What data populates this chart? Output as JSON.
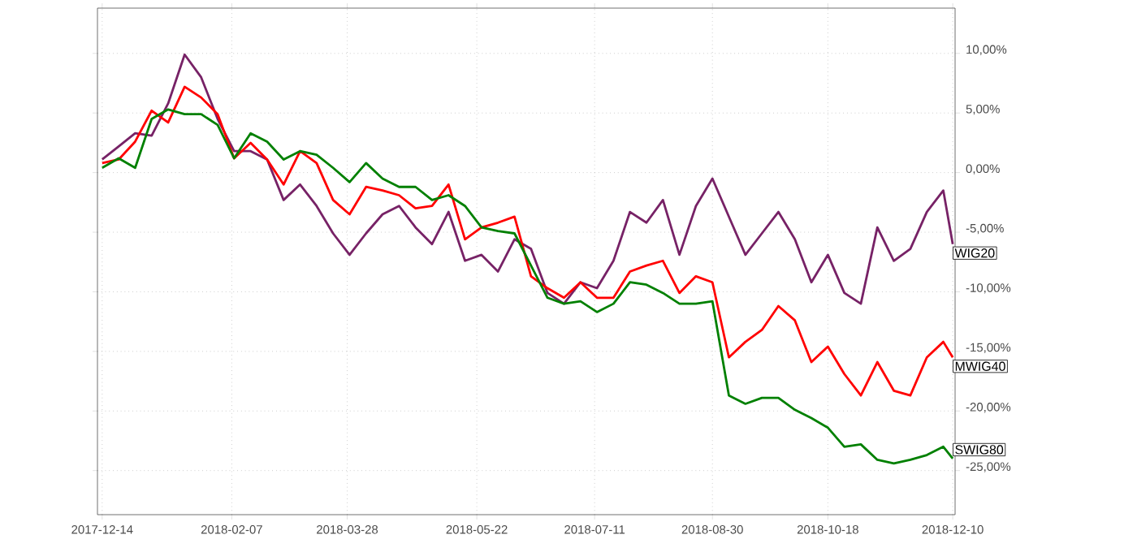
{
  "chart_data": {
    "type": "line",
    "x": [
      "2017-12-14",
      "2017-12-21",
      "2017-12-28",
      "2018-01-04",
      "2018-01-11",
      "2018-01-18",
      "2018-01-25",
      "2018-02-01",
      "2018-02-08",
      "2018-02-15",
      "2018-02-22",
      "2018-03-01",
      "2018-03-08",
      "2018-03-15",
      "2018-03-22",
      "2018-03-29",
      "2018-04-05",
      "2018-04-12",
      "2018-04-19",
      "2018-04-26",
      "2018-05-03",
      "2018-05-10",
      "2018-05-17",
      "2018-05-24",
      "2018-05-31",
      "2018-06-07",
      "2018-06-14",
      "2018-06-21",
      "2018-06-28",
      "2018-07-05",
      "2018-07-12",
      "2018-07-19",
      "2018-07-26",
      "2018-08-02",
      "2018-08-09",
      "2018-08-16",
      "2018-08-23",
      "2018-08-30",
      "2018-09-06",
      "2018-09-13",
      "2018-09-20",
      "2018-09-27",
      "2018-10-04",
      "2018-10-11",
      "2018-10-18",
      "2018-10-25",
      "2018-11-01",
      "2018-11-08",
      "2018-11-15",
      "2018-11-22",
      "2018-11-29",
      "2018-12-06",
      "2018-12-10"
    ],
    "series": [
      {
        "name": "WIG20",
        "color": "#772266",
        "values": [
          1.1,
          2.2,
          3.3,
          3.1,
          5.8,
          9.9,
          8.0,
          4.5,
          1.8,
          1.8,
          1.1,
          -2.3,
          -1.0,
          -2.8,
          -5.1,
          -6.9,
          -5.1,
          -3.5,
          -2.8,
          -4.6,
          -6.0,
          -3.3,
          -7.4,
          -6.9,
          -8.3,
          -5.6,
          -6.4,
          -10.1,
          -11.0,
          -9.2,
          -9.7,
          -7.4,
          -3.3,
          -4.2,
          -2.3,
          -6.9,
          -2.8,
          -0.5,
          -3.7,
          -6.9,
          -5.1,
          -3.3,
          -5.6,
          -9.2,
          -6.9,
          -10.1,
          -11.0,
          -4.6,
          -7.4,
          -6.4,
          -3.3,
          -1.5,
          -6.0
        ]
      },
      {
        "name": "MWIG40",
        "color": "#ff0000",
        "values": [
          0.8,
          1.1,
          2.6,
          5.2,
          4.2,
          7.2,
          6.3,
          4.9,
          1.2,
          2.5,
          1.1,
          -1.0,
          1.8,
          0.8,
          -2.3,
          -3.5,
          -1.2,
          -1.5,
          -1.9,
          -3.0,
          -2.8,
          -1.0,
          -5.6,
          -4.6,
          -4.2,
          -3.7,
          -8.7,
          -9.7,
          -10.5,
          -9.2,
          -10.5,
          -10.5,
          -8.3,
          -7.8,
          -7.4,
          -10.1,
          -8.7,
          -9.2,
          -15.5,
          -14.2,
          -13.2,
          -11.2,
          -12.4,
          -15.9,
          -14.6,
          -16.9,
          -18.7,
          -15.9,
          -18.3,
          -18.7,
          -15.5,
          -14.2,
          -15.5
        ]
      },
      {
        "name": "SWIG80",
        "color": "#008000",
        "values": [
          0.4,
          1.2,
          0.4,
          4.5,
          5.3,
          4.9,
          4.9,
          4.0,
          1.2,
          3.3,
          2.6,
          1.1,
          1.8,
          1.5,
          0.4,
          -0.8,
          0.8,
          -0.5,
          -1.2,
          -1.2,
          -2.3,
          -1.9,
          -2.8,
          -4.6,
          -4.9,
          -5.1,
          -7.8,
          -10.5,
          -11.0,
          -10.8,
          -11.7,
          -11.0,
          -9.2,
          -9.4,
          -10.1,
          -11.0,
          -11.0,
          -10.8,
          -18.7,
          -19.4,
          -18.9,
          -18.9,
          -19.9,
          -20.6,
          -21.4,
          -23.0,
          -22.8,
          -24.1,
          -24.4,
          -24.1,
          -23.7,
          -23.0,
          -24.0
        ]
      }
    ],
    "xlim": [
      "2017-12-12",
      "2018-12-11"
    ],
    "xticks": [
      "2017-12-14",
      "2018-02-07",
      "2018-03-28",
      "2018-05-22",
      "2018-07-11",
      "2018-08-30",
      "2018-10-18",
      "2018-12-10"
    ],
    "ylim": [
      -28.7,
      13.8
    ],
    "yticks": [
      {
        "value": 10,
        "label": "10,00%"
      },
      {
        "value": 5,
        "label": "5,00%"
      },
      {
        "value": 0,
        "label": "0,00%"
      },
      {
        "value": -5,
        "label": "-5,00%"
      },
      {
        "value": -10,
        "label": "-10,00%"
      },
      {
        "value": -15,
        "label": "-15,00%"
      },
      {
        "value": -20,
        "label": "-20,00%"
      },
      {
        "value": -25,
        "label": "-25,00%"
      }
    ],
    "grid": true,
    "line_style": "solid"
  }
}
